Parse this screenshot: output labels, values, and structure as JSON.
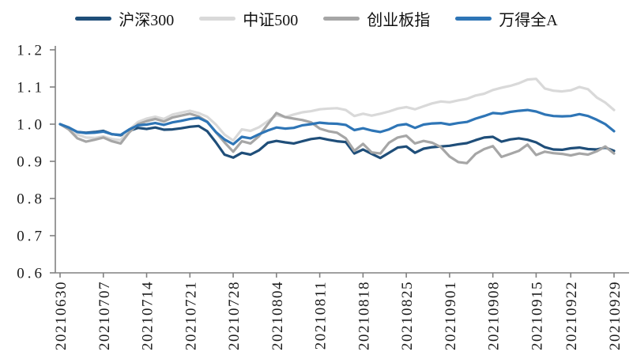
{
  "page": {
    "background": "#ffffff"
  },
  "legend": {
    "items": [
      {
        "label": "沪深300",
        "color": "#1f4e79"
      },
      {
        "label": "中证500",
        "color": "#d9d9d9"
      },
      {
        "label": "创业板指",
        "color": "#a6a6a6"
      },
      {
        "label": "万得全A",
        "color": "#2e75b6"
      }
    ]
  },
  "chart_data": {
    "type": "line",
    "title": "",
    "xlabel": "",
    "ylabel": "",
    "grid": false,
    "legend_position": "top",
    "ylim": [
      0.6,
      1.2
    ],
    "y_ticks": [
      "0.6",
      "0.7",
      "0.8",
      "0.9",
      "1.0",
      "1.1",
      "1.2"
    ],
    "x_tick_dates": [
      "20210630",
      "20210707",
      "20210714",
      "20210721",
      "20210728",
      "20210804",
      "20210811",
      "20210818",
      "20210825",
      "20210901",
      "20210908",
      "20210915",
      "20210922",
      "20210929"
    ],
    "x": [
      "20210630",
      "20210701",
      "20210702",
      "20210705",
      "20210706",
      "20210707",
      "20210708",
      "20210709",
      "20210712",
      "20210713",
      "20210714",
      "20210715",
      "20210716",
      "20210719",
      "20210720",
      "20210721",
      "20210722",
      "20210723",
      "20210726",
      "20210727",
      "20210728",
      "20210729",
      "20210730",
      "20210802",
      "20210803",
      "20210804",
      "20210805",
      "20210806",
      "20210809",
      "20210810",
      "20210811",
      "20210812",
      "20210813",
      "20210816",
      "20210817",
      "20210818",
      "20210819",
      "20210820",
      "20210823",
      "20210824",
      "20210825",
      "20210826",
      "20210827",
      "20210830",
      "20210831",
      "20210901",
      "20210902",
      "20210903",
      "20210906",
      "20210907",
      "20210908",
      "20210909",
      "20210910",
      "20210913",
      "20210914",
      "20210915",
      "20210916",
      "20210917",
      "20210918",
      "20210922",
      "20210923",
      "20210924",
      "20210927",
      "20210928",
      "20210929"
    ],
    "series": [
      {
        "name": "沪深300",
        "color": "#1f4e79",
        "values": [
          1.0,
          0.99,
          0.979,
          0.977,
          0.979,
          0.982,
          0.973,
          0.97,
          0.982,
          0.99,
          0.987,
          0.991,
          0.985,
          0.986,
          0.989,
          0.993,
          0.995,
          0.981,
          0.951,
          0.918,
          0.91,
          0.923,
          0.918,
          0.93,
          0.95,
          0.955,
          0.951,
          0.948,
          0.954,
          0.96,
          0.963,
          0.958,
          0.954,
          0.952,
          0.921,
          0.932,
          0.92,
          0.909,
          0.923,
          0.937,
          0.94,
          0.923,
          0.934,
          0.938,
          0.94,
          0.942,
          0.946,
          0.949,
          0.957,
          0.964,
          0.966,
          0.953,
          0.959,
          0.962,
          0.958,
          0.951,
          0.938,
          0.932,
          0.931,
          0.935,
          0.937,
          0.933,
          0.932,
          0.937,
          0.928
        ]
      },
      {
        "name": "中证500",
        "color": "#d9d9d9",
        "values": [
          1.0,
          0.992,
          0.972,
          0.964,
          0.963,
          0.967,
          0.96,
          0.957,
          0.985,
          1.006,
          1.015,
          1.02,
          1.014,
          1.026,
          1.031,
          1.036,
          1.03,
          1.02,
          0.999,
          0.972,
          0.956,
          0.986,
          0.982,
          0.992,
          1.008,
          1.024,
          1.019,
          1.026,
          1.032,
          1.035,
          1.04,
          1.042,
          1.043,
          1.038,
          1.022,
          1.028,
          1.023,
          1.028,
          1.034,
          1.042,
          1.046,
          1.04,
          1.048,
          1.056,
          1.061,
          1.059,
          1.064,
          1.068,
          1.077,
          1.082,
          1.092,
          1.098,
          1.103,
          1.11,
          1.12,
          1.122,
          1.096,
          1.09,
          1.088,
          1.091,
          1.1,
          1.094,
          1.072,
          1.058,
          1.038
        ]
      },
      {
        "name": "创业板指",
        "color": "#a6a6a6",
        "values": [
          1.0,
          0.986,
          0.962,
          0.953,
          0.958,
          0.964,
          0.954,
          0.948,
          0.978,
          1.0,
          1.008,
          1.014,
          1.007,
          1.018,
          1.023,
          1.028,
          1.021,
          1.007,
          0.978,
          0.951,
          0.926,
          0.954,
          0.948,
          0.968,
          1.0,
          1.03,
          1.019,
          1.015,
          1.011,
          1.005,
          0.988,
          0.981,
          0.977,
          0.962,
          0.928,
          0.947,
          0.924,
          0.921,
          0.95,
          0.964,
          0.969,
          0.948,
          0.955,
          0.95,
          0.938,
          0.913,
          0.898,
          0.895,
          0.92,
          0.933,
          0.941,
          0.912,
          0.92,
          0.928,
          0.945,
          0.917,
          0.926,
          0.922,
          0.92,
          0.916,
          0.921,
          0.918,
          0.927,
          0.94,
          0.921
        ]
      },
      {
        "name": "万得全A",
        "color": "#2e75b6",
        "values": [
          1.0,
          0.991,
          0.979,
          0.976,
          0.977,
          0.98,
          0.973,
          0.971,
          0.986,
          0.997,
          0.999,
          1.003,
          0.998,
          1.005,
          1.009,
          1.014,
          1.017,
          1.006,
          0.979,
          0.959,
          0.946,
          0.966,
          0.962,
          0.973,
          0.983,
          0.991,
          0.988,
          0.99,
          0.997,
          1.0,
          1.004,
          1.002,
          1.001,
          0.998,
          0.984,
          0.989,
          0.983,
          0.979,
          0.986,
          0.997,
          1.0,
          0.99,
          0.999,
          1.002,
          1.003,
          0.999,
          1.003,
          1.006,
          1.015,
          1.022,
          1.03,
          1.028,
          1.033,
          1.036,
          1.038,
          1.034,
          1.026,
          1.022,
          1.021,
          1.022,
          1.027,
          1.022,
          1.012,
          1.0,
          0.981
        ]
      }
    ]
  }
}
